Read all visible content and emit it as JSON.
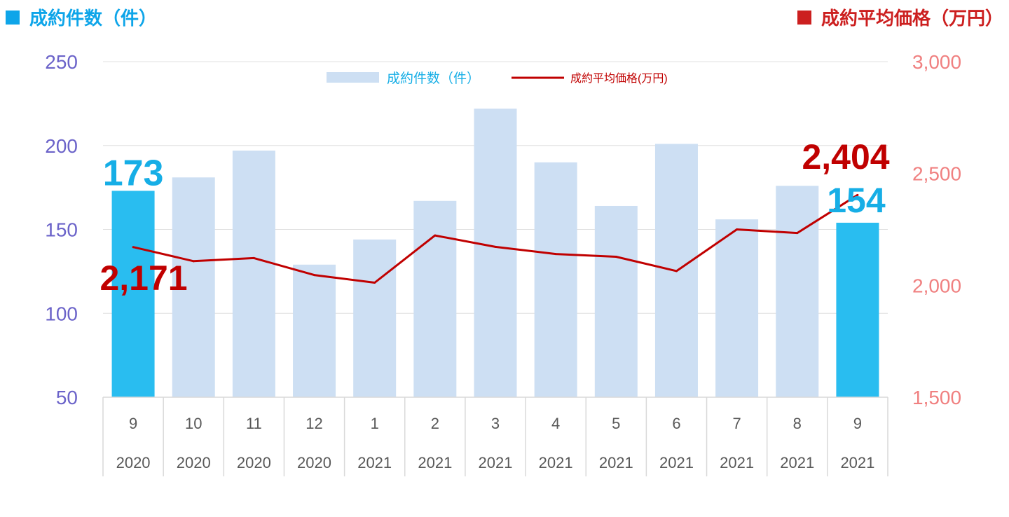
{
  "header": {
    "left_title": "成約件数（件）",
    "right_title": "成約平均価格（万円）",
    "left_color": "#0ea5e9",
    "right_color": "#cc1f1f"
  },
  "chart_data": {
    "type": "bar+line",
    "categories": [
      {
        "month": "9",
        "year": "2020"
      },
      {
        "month": "10",
        "year": "2020"
      },
      {
        "month": "11",
        "year": "2020"
      },
      {
        "month": "12",
        "year": "2020"
      },
      {
        "month": "1",
        "year": "2021"
      },
      {
        "month": "2",
        "year": "2021"
      },
      {
        "month": "3",
        "year": "2021"
      },
      {
        "month": "4",
        "year": "2021"
      },
      {
        "month": "5",
        "year": "2021"
      },
      {
        "month": "6",
        "year": "2021"
      },
      {
        "month": "7",
        "year": "2021"
      },
      {
        "month": "8",
        "year": "2021"
      },
      {
        "month": "9",
        "year": "2021"
      }
    ],
    "series": [
      {
        "name": "成約件数（件）",
        "type": "bar",
        "axis": "left",
        "values": [
          173,
          181,
          197,
          129,
          144,
          167,
          222,
          190,
          164,
          201,
          156,
          176,
          154
        ],
        "color": "#cddff3",
        "highlight_color": "#29bdf0",
        "highlight_indices": [
          0,
          12
        ]
      },
      {
        "name": "成約平均価格(万円)",
        "type": "line",
        "axis": "right",
        "values": [
          2171,
          2108,
          2122,
          2046,
          2012,
          2223,
          2172,
          2140,
          2128,
          2064,
          2250,
          2234,
          2404
        ],
        "color": "#c00000"
      }
    ],
    "y_left": {
      "min": 50,
      "max": 250,
      "ticks": [
        "50",
        "100",
        "150",
        "200",
        "250"
      ],
      "color": "#6b63c9"
    },
    "y_right": {
      "min": 1500,
      "max": 3000,
      "ticks": [
        "1,500",
        "2,000",
        "2,500",
        "3,000"
      ],
      "color": "#f08080"
    },
    "annotations": [
      {
        "text": "173",
        "color": "#16aee6"
      },
      {
        "text": "2,171",
        "color": "#c00000"
      },
      {
        "text": "2,404",
        "color": "#c00000"
      },
      {
        "text": "154",
        "color": "#16aee6"
      }
    ],
    "grid": true,
    "legend": "top-center"
  }
}
